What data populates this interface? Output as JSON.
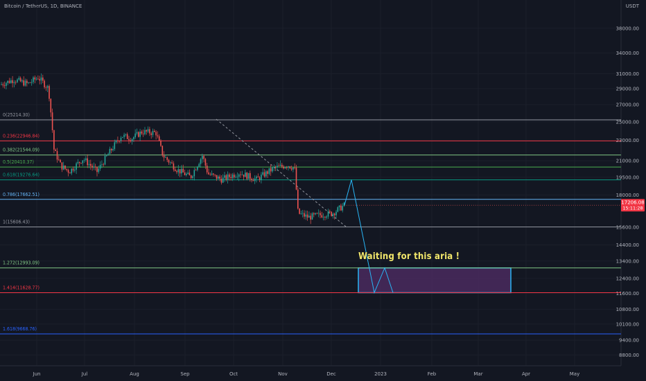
{
  "chart_data": {
    "type": "candlestick",
    "title": "Bitcoin / TetherUS, 1D, BINANCE",
    "currency": "USDT",
    "y_axis_ticks": [
      38000,
      34000,
      31000,
      29000,
      27000,
      25000,
      23000,
      21000,
      19500,
      18000,
      15600,
      14400,
      13400,
      12400,
      11600,
      10800,
      10100,
      9400,
      8800
    ],
    "y_axis_scale": "log",
    "x_axis_ticks": [
      "Jun",
      "Jul",
      "Aug",
      "Sep",
      "Oct",
      "Nov",
      "Dec",
      "2023",
      "Feb",
      "Mar",
      "Apr",
      "May"
    ],
    "current_price": "17206.08",
    "countdown": "15:11:28",
    "fib_levels": [
      {
        "ratio": "0",
        "price": "25214.30",
        "color": "#9598a1"
      },
      {
        "ratio": "0.236",
        "price": "22946.84",
        "color": "#f23645"
      },
      {
        "ratio": "0.382",
        "price": "21544.09",
        "color": "#81c784"
      },
      {
        "ratio": "0.5",
        "price": "20410.37",
        "color": "#4caf50"
      },
      {
        "ratio": "0.618",
        "price": "19276.64",
        "color": "#089981"
      },
      {
        "ratio": "0.786",
        "price": "17662.51",
        "color": "#64b5f6"
      },
      {
        "ratio": "1",
        "price": "15606.43",
        "color": "#9598a1"
      },
      {
        "ratio": "1.272",
        "price": "12993.09",
        "color": "#81c784"
      },
      {
        "ratio": "1.414",
        "price": "11628.77",
        "color": "#f23645"
      },
      {
        "ratio": "1.618",
        "price": "9668.76",
        "color": "#2962ff"
      }
    ],
    "annotation": "Waiting for this aria !",
    "target_zone": {
      "top_price": 12993.09,
      "bottom_price": 11628.77,
      "fill": "#4a2a5e",
      "border": "#29b6f6"
    },
    "projection_path_prices": [
      17206,
      19276.64,
      11628.77,
      12993.09,
      11628.77
    ],
    "colors": {
      "up": "#26a69a",
      "down": "#ef5350",
      "background": "#131722",
      "grid": "#1e2230",
      "axis_text": "#b2b5be"
    }
  }
}
